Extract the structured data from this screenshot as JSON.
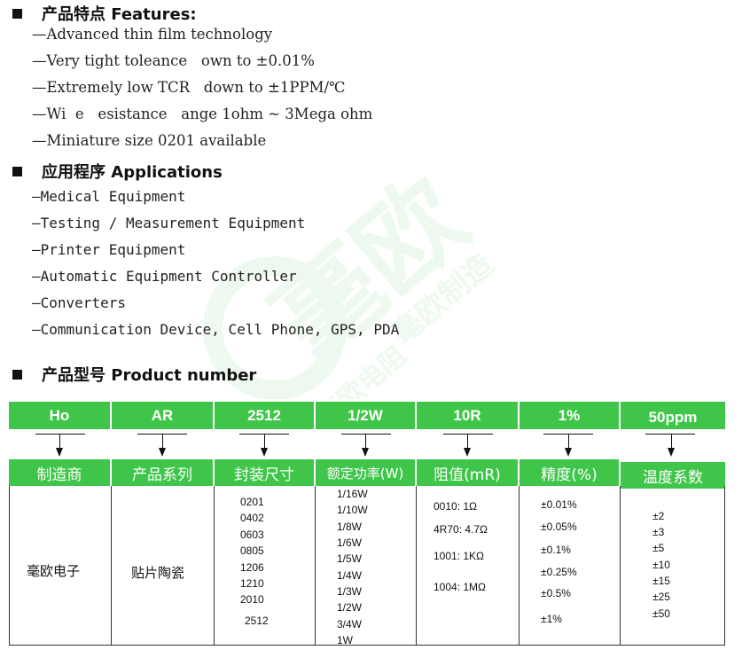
{
  "features": {
    "heading": "产品特点 Features:",
    "items": [
      "—Advanced thin film technology",
      "—Very tight toleance   own to ±0.01%",
      "—Extremely low TCR   down to ±1PPM/℃",
      "—Wi  e   esistance   ange 1ohm ~ 3Mega ohm",
      "—Miniature size 0201 available"
    ]
  },
  "applications": {
    "heading": "应用程序 Applications",
    "items": [
      "—Medical Equipment",
      "—Testing / Measurement Equipment",
      "—Printer Equipment",
      "—Automatic Equipment Controller",
      "—Converters",
      "—Communication Device, Cell Phone, GPS, PDA"
    ]
  },
  "product": {
    "heading": "产品型号 Product number",
    "codes": [
      "Ho",
      "AR",
      "2512",
      "1/2W",
      "10R",
      "1%",
      "50ppm"
    ],
    "headers": [
      "制造商",
      "产品系列",
      "封装尺寸",
      "额定功率(W)",
      "阻值(mR)",
      "精度(%)",
      "温度系数"
    ],
    "manufacturer": "毫欧电子",
    "series": "贴片陶瓷",
    "sizes": [
      "0201",
      "0402",
      "0603",
      "0805",
      "1206",
      "1210",
      "2010",
      "2512"
    ],
    "powers": [
      "1/16W",
      "1/10W",
      "1/8W",
      "1/6W",
      "1/5W",
      "1/4W",
      "1/3W",
      "1/2W",
      "3/4W",
      "1W"
    ],
    "resistances": [
      "0010: 1Ω",
      "4R70: 4.7Ω",
      "1001: 1KΩ",
      "1004: 1MΩ"
    ],
    "tolerances": [
      "±0.01%",
      "±0.05%",
      "±0.1%",
      "±0.25%",
      "±0.5%",
      "±1%"
    ],
    "tcr": [
      "±2",
      "±3",
      "±5",
      "±10",
      "±15",
      "±25",
      "±50"
    ]
  },
  "watermark": {
    "brand": "毫欧",
    "slogan1": "毫欧制造",
    "slogan2": "毫欧电阻",
    "color": "#3fc64a"
  }
}
